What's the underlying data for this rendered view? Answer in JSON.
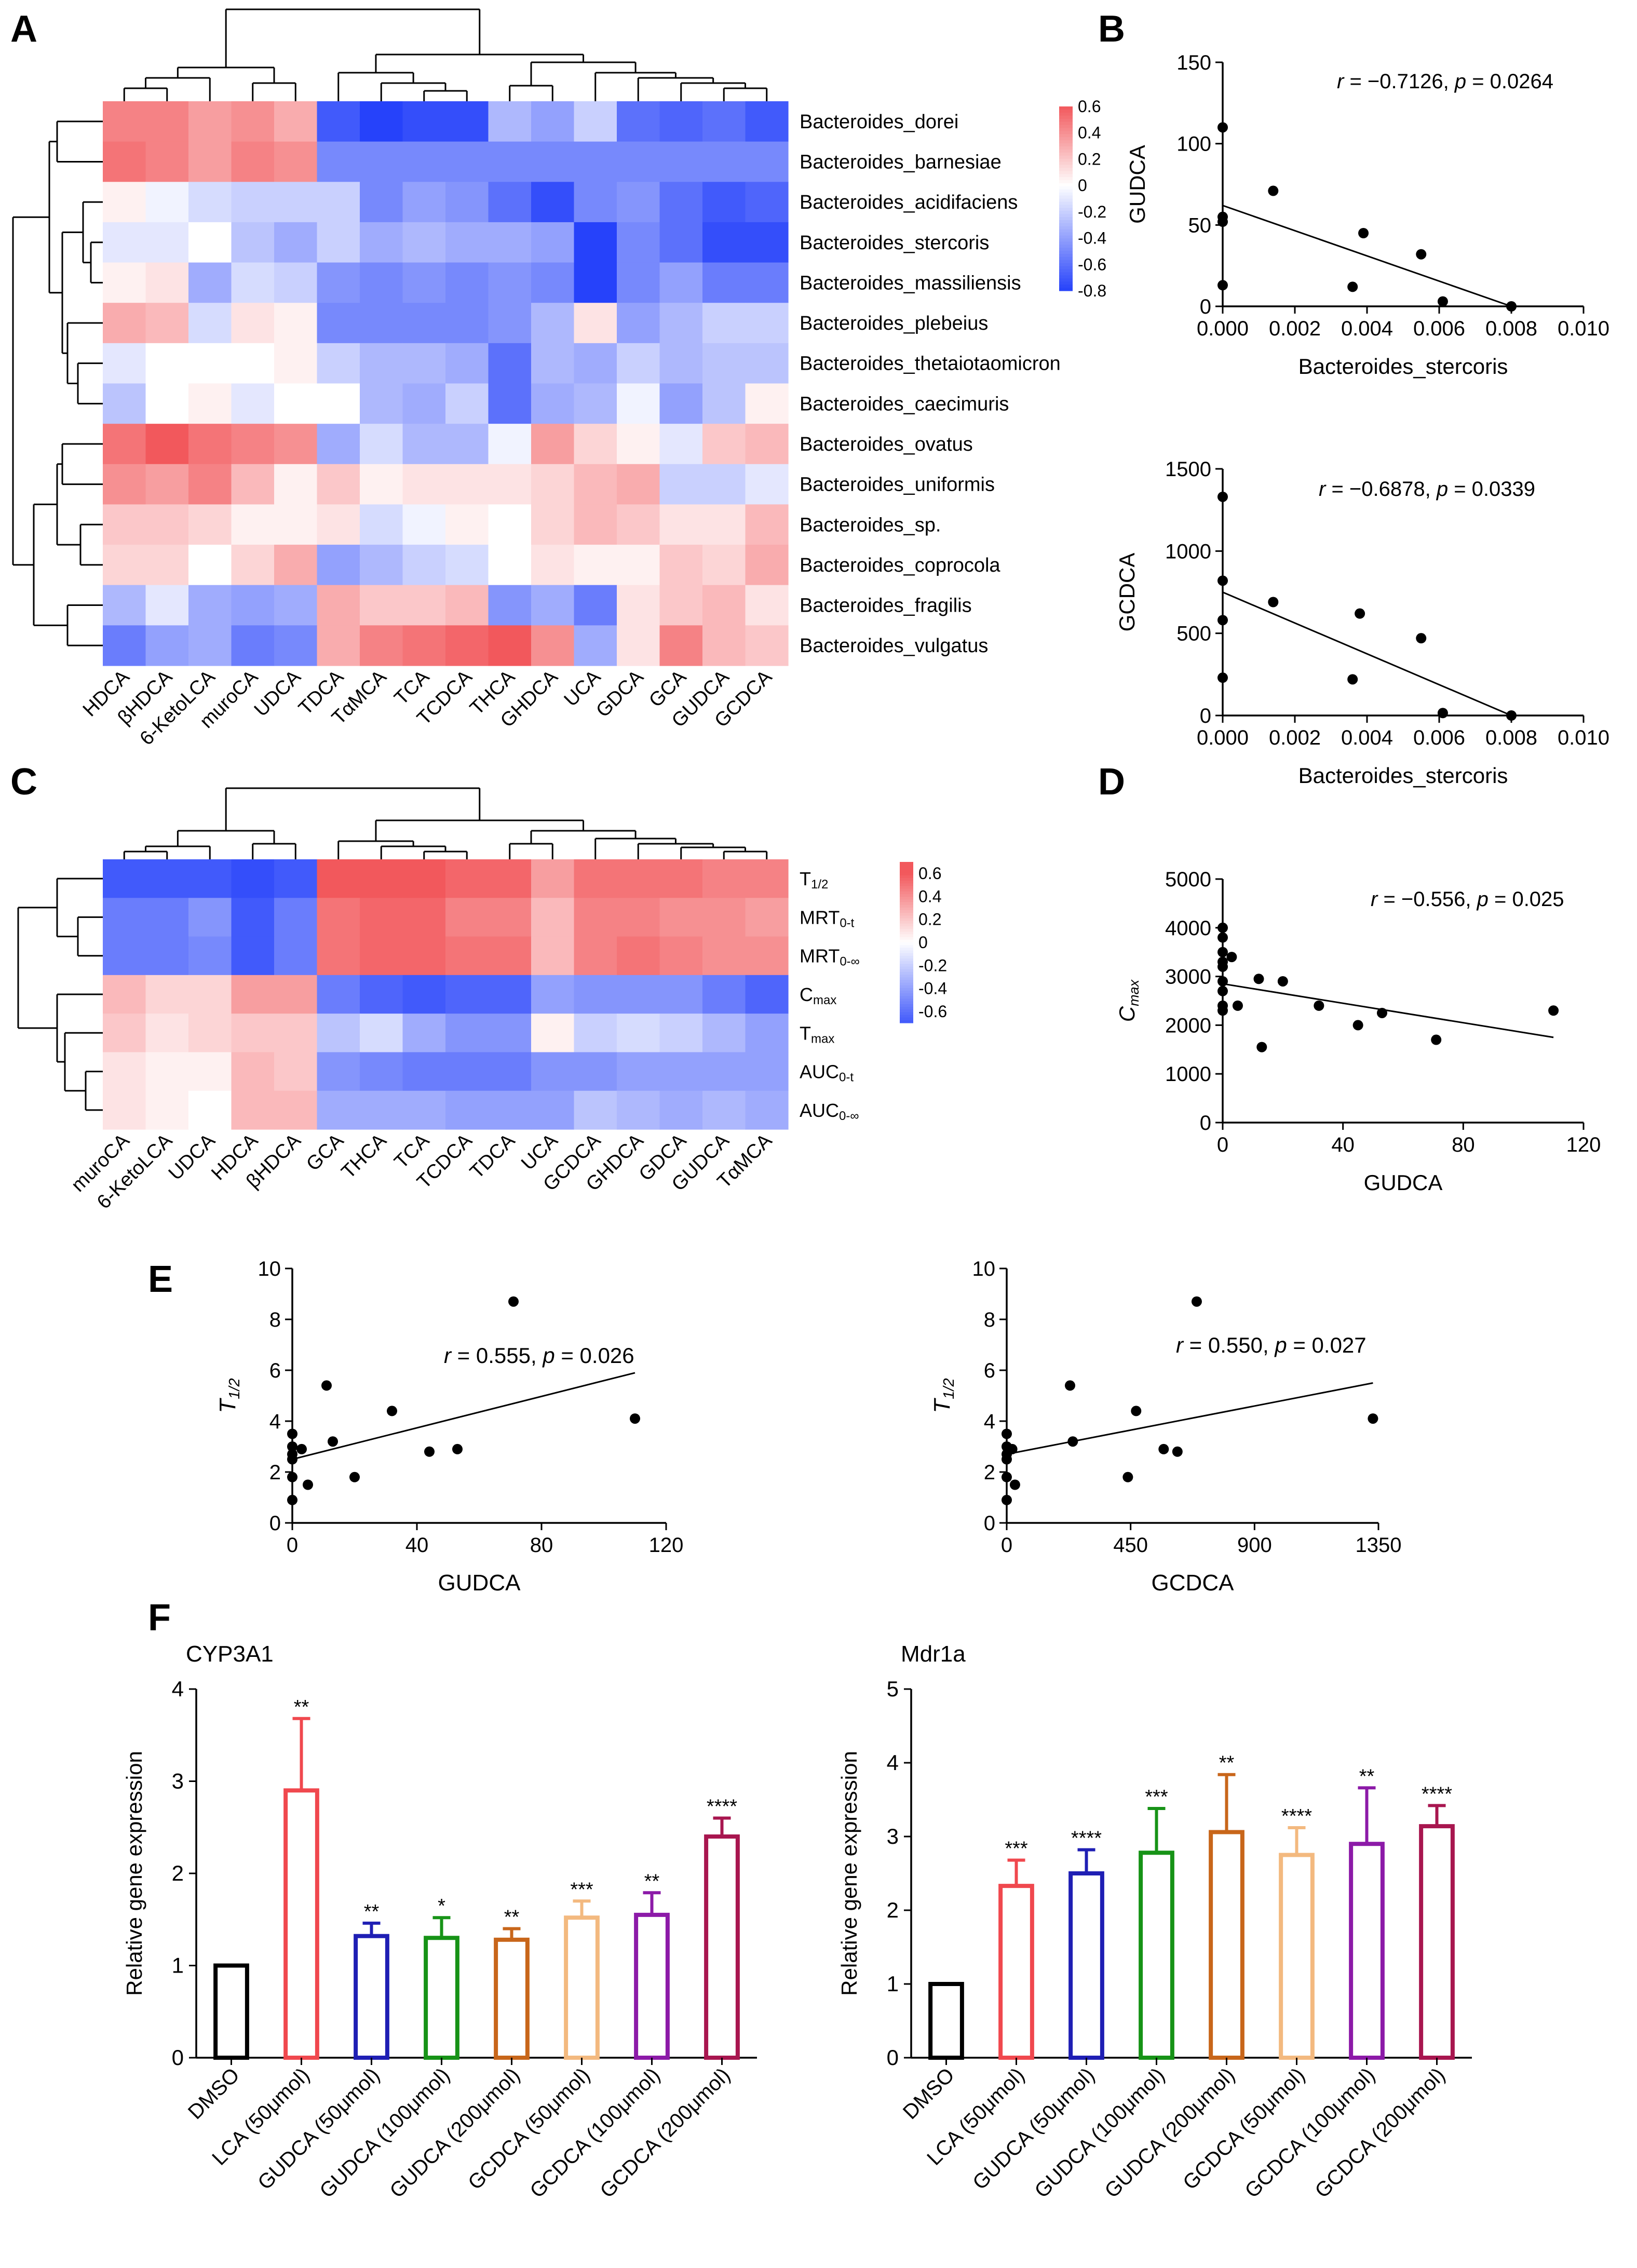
{
  "figure": {
    "panel_letters": [
      "A",
      "B",
      "C",
      "D",
      "E",
      "F"
    ]
  },
  "chart_data": [
    {
      "id": "A",
      "type": "heatmap",
      "columns": [
        "HDCA",
        "βHDCA",
        "6-KetoLCA",
        "muroCA",
        "UDCA",
        "TDCA",
        "TαMCA",
        "TCA",
        "TCDCA",
        "THCA",
        "GHDCA",
        "UCA",
        "GDCA",
        "GCA",
        "GUDCA",
        "GCDCA"
      ],
      "rows": [
        "Bacteroides_dorei",
        "Bacteroides_barnesiae",
        "Bacteroides_acidifaciens",
        "Bacteroides_stercoris",
        "Bacteroides_massiliensis",
        "Bacteroides_plebeius",
        "Bacteroides_thetaiotaomicron",
        "Bacteroides_caecimuris",
        "Bacteroides_ovatus",
        "Bacteroides_uniformis",
        "Bacteroides_sp.",
        "Bacteroides_coprocola",
        "Bacteroides_fragilis",
        "Bacteroides_vulgatus"
      ],
      "values": [
        [
          0.45,
          0.45,
          0.35,
          0.4,
          0.3,
          -0.7,
          -0.85,
          -0.75,
          -0.75,
          -0.3,
          -0.4,
          -0.2,
          -0.6,
          -0.65,
          -0.6,
          -0.7
        ],
        [
          0.5,
          0.45,
          0.35,
          0.45,
          0.4,
          -0.5,
          -0.5,
          -0.5,
          -0.5,
          -0.5,
          -0.5,
          -0.5,
          -0.5,
          -0.5,
          -0.5,
          -0.5
        ],
        [
          0.05,
          -0.05,
          -0.15,
          -0.2,
          -0.2,
          -0.2,
          -0.5,
          -0.4,
          -0.45,
          -0.6,
          -0.75,
          -0.5,
          -0.45,
          -0.6,
          -0.7,
          -0.65
        ],
        [
          -0.1,
          -0.1,
          0.0,
          -0.25,
          -0.35,
          -0.2,
          -0.35,
          -0.3,
          -0.35,
          -0.35,
          -0.4,
          -0.8,
          -0.5,
          -0.6,
          -0.75,
          -0.75
        ],
        [
          0.05,
          0.1,
          -0.35,
          -0.15,
          -0.2,
          -0.45,
          -0.5,
          -0.45,
          -0.5,
          -0.45,
          -0.5,
          -0.8,
          -0.5,
          -0.4,
          -0.55,
          -0.55
        ],
        [
          0.3,
          0.25,
          -0.15,
          0.1,
          0.05,
          -0.5,
          -0.5,
          -0.5,
          -0.5,
          -0.45,
          -0.3,
          0.1,
          -0.4,
          -0.3,
          -0.2,
          -0.2
        ],
        [
          -0.1,
          0.0,
          0.0,
          0.0,
          0.05,
          -0.2,
          -0.3,
          -0.3,
          -0.35,
          -0.6,
          -0.3,
          -0.35,
          -0.2,
          -0.3,
          -0.25,
          -0.25
        ],
        [
          -0.25,
          0.0,
          0.05,
          -0.1,
          0.0,
          0.0,
          -0.3,
          -0.35,
          -0.2,
          -0.6,
          -0.35,
          -0.3,
          -0.05,
          -0.4,
          -0.25,
          0.05
        ],
        [
          0.5,
          0.6,
          0.5,
          0.45,
          0.4,
          -0.35,
          -0.15,
          -0.3,
          -0.3,
          -0.05,
          0.35,
          0.15,
          0.05,
          -0.1,
          0.2,
          0.25
        ],
        [
          0.4,
          0.35,
          0.45,
          0.25,
          0.05,
          0.2,
          0.05,
          0.1,
          0.1,
          0.1,
          0.15,
          0.25,
          0.3,
          -0.2,
          -0.2,
          -0.1
        ],
        [
          0.2,
          0.2,
          0.15,
          0.05,
          0.05,
          0.1,
          -0.15,
          -0.05,
          0.05,
          0.0,
          0.15,
          0.25,
          0.2,
          0.1,
          0.1,
          0.25
        ],
        [
          0.15,
          0.15,
          0.0,
          0.15,
          0.3,
          -0.4,
          -0.3,
          -0.2,
          -0.15,
          0.0,
          0.1,
          0.05,
          0.05,
          0.2,
          0.15,
          0.3
        ],
        [
          -0.3,
          -0.1,
          -0.35,
          -0.4,
          -0.35,
          0.3,
          0.2,
          0.2,
          0.25,
          -0.45,
          -0.35,
          -0.55,
          0.1,
          0.2,
          0.25,
          0.1
        ],
        [
          -0.55,
          -0.4,
          -0.35,
          -0.55,
          -0.5,
          0.3,
          0.45,
          0.5,
          0.55,
          0.65,
          0.4,
          -0.35,
          0.1,
          0.45,
          0.25,
          0.2
        ]
      ],
      "colorbar": {
        "ticks": [
          "0.6",
          "0.4",
          "0.2",
          "0",
          "-0.2",
          "-0.4",
          "-0.6",
          "-0.8"
        ],
        "range": [
          -0.8,
          0.6
        ]
      }
    },
    {
      "id": "B1",
      "type": "scatter",
      "annotation": "r = −0.7126,  p = 0.0264",
      "xlabel": "Bacteroides_stercoris",
      "ylabel": "GUDCA",
      "xlim": [
        0,
        0.01
      ],
      "ylim": [
        0,
        150
      ],
      "xticks": [
        "0.000",
        "0.002",
        "0.004",
        "0.006",
        "0.008",
        "0.010"
      ],
      "yticks": [
        "0",
        "50",
        "100",
        "150"
      ],
      "points": [
        [
          0,
          110
        ],
        [
          0,
          55
        ],
        [
          0,
          52
        ],
        [
          0,
          13
        ],
        [
          0.0014,
          71
        ],
        [
          0.0036,
          12
        ],
        [
          0.0039,
          45
        ],
        [
          0.0055,
          32
        ],
        [
          0.0061,
          3
        ],
        [
          0.008,
          0
        ]
      ],
      "fit": [
        [
          0,
          62
        ],
        [
          0.008,
          0
        ]
      ]
    },
    {
      "id": "B2",
      "type": "scatter",
      "annotation": "r = −0.6878,  p = 0.0339",
      "xlabel": "Bacteroides_stercoris",
      "ylabel": "GCDCA",
      "xlim": [
        0,
        0.01
      ],
      "ylim": [
        0,
        1500
      ],
      "xticks": [
        "0.000",
        "0.002",
        "0.004",
        "0.006",
        "0.008",
        "0.010"
      ],
      "yticks": [
        "0",
        "500",
        "1000",
        "1500"
      ],
      "points": [
        [
          0,
          1330
        ],
        [
          0,
          820
        ],
        [
          0,
          580
        ],
        [
          0,
          230
        ],
        [
          0.0014,
          690
        ],
        [
          0.0036,
          220
        ],
        [
          0.0038,
          620
        ],
        [
          0.0055,
          470
        ],
        [
          0.0061,
          15
        ],
        [
          0.008,
          0
        ]
      ],
      "fit": [
        [
          0,
          750
        ],
        [
          0.008,
          0
        ]
      ]
    },
    {
      "id": "C",
      "type": "heatmap",
      "columns": [
        "muroCA",
        "6-KetoLCA",
        "UDCA",
        "HDCA",
        "βHDCA",
        "GCA",
        "THCA",
        "TCA",
        "TCDCA",
        "TDCA",
        "UCA",
        "GCDCA",
        "GHDCA",
        "GDCA",
        "GUDCA",
        "TαMCA"
      ],
      "rows": [
        {
          "main": "T",
          "sub": "1/2"
        },
        {
          "main": "MRT",
          "sub": "0-t"
        },
        {
          "main": "MRT",
          "sub": "0-∞"
        },
        {
          "main": "C",
          "sub": "max"
        },
        {
          "main": "T",
          "sub": "max"
        },
        {
          "main": "AUC",
          "sub": "0-t"
        },
        {
          "main": "AUC",
          "sub": "0-∞"
        }
      ],
      "values": [
        [
          -0.7,
          -0.7,
          -0.7,
          -0.75,
          -0.7,
          0.6,
          0.6,
          0.6,
          0.55,
          0.55,
          0.35,
          0.5,
          0.5,
          0.5,
          0.45,
          0.45
        ],
        [
          -0.55,
          -0.55,
          -0.45,
          -0.7,
          -0.55,
          0.5,
          0.55,
          0.55,
          0.45,
          0.45,
          0.25,
          0.45,
          0.45,
          0.4,
          0.4,
          0.35
        ],
        [
          -0.55,
          -0.55,
          -0.5,
          -0.7,
          -0.55,
          0.5,
          0.55,
          0.55,
          0.5,
          0.5,
          0.25,
          0.45,
          0.5,
          0.45,
          0.4,
          0.4
        ],
        [
          0.25,
          0.15,
          0.15,
          0.35,
          0.35,
          -0.55,
          -0.65,
          -0.7,
          -0.65,
          -0.65,
          -0.4,
          -0.45,
          -0.45,
          -0.45,
          -0.55,
          -0.65
        ],
        [
          0.2,
          0.1,
          0.15,
          0.2,
          0.2,
          -0.25,
          -0.15,
          -0.35,
          -0.45,
          -0.45,
          0.05,
          -0.2,
          -0.15,
          -0.2,
          -0.3,
          -0.4
        ],
        [
          0.1,
          0.05,
          0.05,
          0.25,
          0.2,
          -0.45,
          -0.5,
          -0.55,
          -0.55,
          -0.55,
          -0.45,
          -0.45,
          -0.4,
          -0.4,
          -0.4,
          -0.4
        ],
        [
          0.1,
          0.05,
          0.0,
          0.25,
          0.25,
          -0.35,
          -0.35,
          -0.35,
          -0.4,
          -0.4,
          -0.4,
          -0.25,
          -0.3,
          -0.35,
          -0.3,
          -0.35
        ]
      ],
      "colorbar": {
        "ticks": [
          "0.6",
          "0.4",
          "0.2",
          "0",
          "-0.2",
          "-0.4",
          "-0.6"
        ],
        "range": [
          -0.7,
          0.7
        ]
      }
    },
    {
      "id": "D",
      "type": "scatter",
      "annotation": "r = −0.556,  p = 0.025",
      "xlabel": "GUDCA",
      "ylabel": {
        "main": "C",
        "sub": "max"
      },
      "xlim": [
        0,
        120
      ],
      "ylim": [
        0,
        5000
      ],
      "xticks": [
        "0",
        "40",
        "80",
        "120"
      ],
      "yticks": [
        "0",
        "1000",
        "2000",
        "3000",
        "4000",
        "5000"
      ],
      "points": [
        [
          0,
          4000
        ],
        [
          0,
          3800
        ],
        [
          0,
          3500
        ],
        [
          0,
          3300
        ],
        [
          0,
          3200
        ],
        [
          0,
          2900
        ],
        [
          0,
          2700
        ],
        [
          0,
          2400
        ],
        [
          0,
          2300
        ],
        [
          3,
          3400
        ],
        [
          5,
          2400
        ],
        [
          13,
          1550
        ],
        [
          12,
          2950
        ],
        [
          20,
          2900
        ],
        [
          32,
          2400
        ],
        [
          45,
          2000
        ],
        [
          53,
          2250
        ],
        [
          71,
          1700
        ],
        [
          110,
          2300
        ]
      ],
      "fit": [
        [
          0,
          2850
        ],
        [
          110,
          1750
        ]
      ]
    },
    {
      "id": "E1",
      "type": "scatter",
      "annotation": "r = 0.555,  p = 0.026",
      "xlabel": "GUDCA",
      "ylabel": {
        "main": "T",
        "sub": "1/2"
      },
      "xlim": [
        0,
        120
      ],
      "ylim": [
        0,
        10
      ],
      "xticks": [
        "0",
        "40",
        "80",
        "120"
      ],
      "yticks": [
        "0",
        "2",
        "4",
        "6",
        "8",
        "10"
      ],
      "points": [
        [
          0,
          3.5
        ],
        [
          0,
          3.0
        ],
        [
          0,
          2.7
        ],
        [
          0,
          2.5
        ],
        [
          0,
          1.8
        ],
        [
          0,
          0.9
        ],
        [
          3,
          2.9
        ],
        [
          5,
          1.5
        ],
        [
          11,
          5.4
        ],
        [
          13,
          3.2
        ],
        [
          20,
          1.8
        ],
        [
          32,
          4.4
        ],
        [
          44,
          2.8
        ],
        [
          53,
          2.9
        ],
        [
          71,
          8.7
        ],
        [
          110,
          4.1
        ]
      ],
      "fit": [
        [
          0,
          2.5
        ],
        [
          110,
          5.9
        ]
      ]
    },
    {
      "id": "E2",
      "type": "scatter",
      "annotation": "r = 0.550,  p = 0.027",
      "xlabel": "GCDCA",
      "ylabel": {
        "main": "T",
        "sub": "1/2"
      },
      "xlim": [
        0,
        1350
      ],
      "ylim": [
        0,
        10
      ],
      "xticks": [
        "0",
        "450",
        "900",
        "1350"
      ],
      "yticks": [
        "0",
        "2",
        "4",
        "6",
        "8",
        "10"
      ],
      "points": [
        [
          0,
          3.5
        ],
        [
          0,
          3.0
        ],
        [
          0,
          2.7
        ],
        [
          0,
          2.5
        ],
        [
          0,
          1.8
        ],
        [
          0,
          0.9
        ],
        [
          20,
          2.9
        ],
        [
          30,
          1.5
        ],
        [
          230,
          5.4
        ],
        [
          240,
          3.2
        ],
        [
          440,
          1.8
        ],
        [
          470,
          4.4
        ],
        [
          570,
          2.9
        ],
        [
          620,
          2.8
        ],
        [
          690,
          8.7
        ],
        [
          1330,
          4.1
        ]
      ],
      "fit": [
        [
          0,
          2.7
        ],
        [
          1330,
          5.5
        ]
      ]
    },
    {
      "id": "F1",
      "type": "bar",
      "title": "CYP3A1",
      "ylabel": "Relative gene expression",
      "ylim": [
        0,
        4
      ],
      "yticks": [
        "0",
        "1",
        "2",
        "3",
        "4"
      ],
      "categories": [
        "DMSO",
        "LCA (50μmol)",
        "GUDCA (50μmol)",
        "GUDCA (100μmol)",
        "GUDCA (200μmol)",
        "GCDCA (50μmol)",
        "GCDCA (100μmol)",
        "GCDCA (200μmol)"
      ],
      "values": [
        1.0,
        2.9,
        1.32,
        1.3,
        1.28,
        1.52,
        1.55,
        2.4
      ],
      "errors": [
        0,
        0.78,
        0.14,
        0.22,
        0.12,
        0.18,
        0.24,
        0.2
      ],
      "significance": [
        "",
        "**",
        "**",
        "*",
        "**",
        "***",
        "**",
        "****"
      ],
      "colors": [
        "#000000",
        "#f0484e",
        "#1f1fb4",
        "#179317",
        "#c8661a",
        "#f3b97f",
        "#8c1aa8",
        "#a8164f"
      ]
    },
    {
      "id": "F2",
      "type": "bar",
      "title": "Mdr1a",
      "ylabel": "Relative gene expression",
      "ylim": [
        0,
        5
      ],
      "yticks": [
        "0",
        "1",
        "2",
        "3",
        "4",
        "5"
      ],
      "categories": [
        "DMSO",
        "LCA (50μmol)",
        "GUDCA (50μmol)",
        "GUDCA (100μmol)",
        "GUDCA (200μmol)",
        "GCDCA (50μmol)",
        "GCDCA (100μmol)",
        "GCDCA (200μmol)"
      ],
      "values": [
        1.0,
        2.33,
        2.5,
        2.78,
        3.06,
        2.75,
        2.9,
        3.14
      ],
      "errors": [
        0,
        0.35,
        0.32,
        0.6,
        0.78,
        0.37,
        0.76,
        0.28
      ],
      "significance": [
        "",
        "***",
        "****",
        "***",
        "**",
        "****",
        "**",
        "****"
      ],
      "colors": [
        "#000000",
        "#f0484e",
        "#1f1fb4",
        "#179317",
        "#c8661a",
        "#f3b97f",
        "#8c1aa8",
        "#a8164f"
      ]
    }
  ]
}
